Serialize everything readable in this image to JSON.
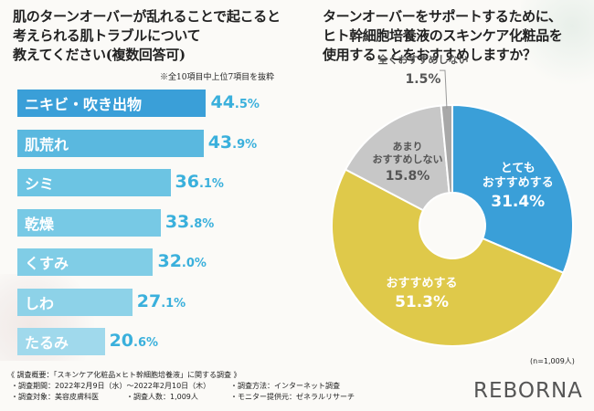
{
  "left": {
    "title_lines": [
      "肌のターンオーバーが乱れることで起こると",
      "考えられる肌トラブルについて",
      "教えてください(複数回答可)"
    ],
    "note": "※全10項目中上位7項目を抜粋"
  },
  "right": {
    "title_lines": [
      "ターンオーバーをサポートするために、",
      "ヒト幹細胞培養液のスキンケア化粧品を",
      "使用することをおすすめしますか？"
    ],
    "n_note": "(n=1,009人)"
  },
  "chart_data": [
    {
      "type": "bar",
      "orientation": "horizontal",
      "title": "肌のターンオーバーが乱れることで起こると考えられる肌トラブルについて教えてください(複数回答可)",
      "unit": "%",
      "xlim": [
        0,
        50
      ],
      "categories": [
        "ニキビ・吹き出物",
        "肌荒れ",
        "シミ",
        "乾燥",
        "くすみ",
        "しわ",
        "たるみ"
      ],
      "values": [
        44.5,
        43.9,
        36.1,
        33.8,
        32.0,
        27.1,
        20.6
      ],
      "value_int": [
        "44",
        "43",
        "36",
        "33",
        "32",
        "27",
        "20"
      ],
      "value_dec": [
        ".5%",
        ".9%",
        ".1%",
        ".8%",
        ".0%",
        ".1%",
        ".6%"
      ],
      "colors": [
        "#3a9fd8",
        "#5ab8df",
        "#6cc4e3",
        "#77c9e5",
        "#80cde6",
        "#8dd2e8",
        "#a0d9ec"
      ]
    },
    {
      "type": "pie",
      "title": "ターンオーバーをサポートするために、ヒト幹細胞培養液のスキンケア化粧品を使用することをおすすめしますか？",
      "unit": "%",
      "slices": [
        {
          "label_lines": [
            "とても",
            "おすすめする"
          ],
          "value": 31.4,
          "value_text": "31.4%",
          "color": "#3a9fd8"
        },
        {
          "label_lines": [
            "おすすめする"
          ],
          "value": 51.3,
          "value_text": "51.3%",
          "color": "#dfc94a"
        },
        {
          "label_lines": [
            "あまり",
            "おすすめしない"
          ],
          "value": 15.8,
          "value_text": "15.8%",
          "color": "#c7c7c7"
        },
        {
          "label_lines": [
            "全くおすすめしない"
          ],
          "value": 1.5,
          "value_text": "1.5%",
          "color": "#a8a8a8"
        }
      ]
    }
  ],
  "footer": {
    "line1": "《 調査概要：「スキンケア化粧品×ヒト幹細胞培養液」に関する調査 》",
    "period": "・調査期間：2022年2月9日（水）～2022年2月10日（木）",
    "method": "・調査方法：インターネット調査",
    "target": "・調査対象：美容皮膚科医",
    "count": "・調査人数：1,009人",
    "provider": "・モニター提供元：ゼネラルリサーチ",
    "logo": "REBORNA"
  }
}
